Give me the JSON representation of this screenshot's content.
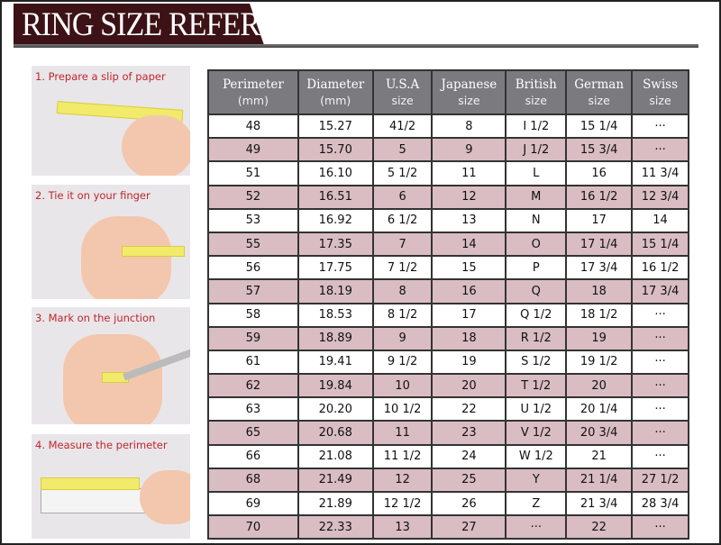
{
  "title": "RING SIZE REFERENCE",
  "colors": {
    "title_bar": "#3c1216",
    "header": "#7b7a7e",
    "stripe": "#d9bdc2",
    "caption": "#c0262b"
  },
  "steps": [
    {
      "label": "1. Prepare a slip of paper"
    },
    {
      "label": "2. Tie it on your finger"
    },
    {
      "label": "3. Mark on the junction"
    },
    {
      "label": "4. Measure the perimeter"
    }
  ],
  "table": {
    "headers": [
      {
        "name": "Perimeter",
        "sub": "(mm)"
      },
      {
        "name": "Diameter",
        "sub": "(mm)"
      },
      {
        "name": "U.S.A",
        "sub": "size"
      },
      {
        "name": "Japanese",
        "sub": "size"
      },
      {
        "name": "British",
        "sub": "size"
      },
      {
        "name": "German",
        "sub": "size"
      },
      {
        "name": "Swiss",
        "sub": "size"
      }
    ],
    "rows": [
      [
        "48",
        "15.27",
        "41/2",
        "8",
        "I 1/2",
        "15 1/4",
        "···"
      ],
      [
        "49",
        "15.70",
        "5",
        "9",
        "J 1/2",
        "15 3/4",
        "···"
      ],
      [
        "51",
        "16.10",
        "5 1/2",
        "11",
        "L",
        "16",
        "11 3/4"
      ],
      [
        "52",
        "16.51",
        "6",
        "12",
        "M",
        "16 1/2",
        "12 3/4"
      ],
      [
        "53",
        "16.92",
        "6 1/2",
        "13",
        "N",
        "17",
        "14"
      ],
      [
        "55",
        "17.35",
        "7",
        "14",
        "O",
        "17 1/4",
        "15 1/4"
      ],
      [
        "56",
        "17.75",
        "7 1/2",
        "15",
        "P",
        "17 3/4",
        "16 1/2"
      ],
      [
        "57",
        "18.19",
        "8",
        "16",
        "Q",
        "18",
        "17 3/4"
      ],
      [
        "58",
        "18.53",
        "8 1/2",
        "17",
        "Q  1/2",
        "18 1/2",
        "···"
      ],
      [
        "59",
        "18.89",
        "9",
        "18",
        "R 1/2",
        "19",
        "···"
      ],
      [
        "61",
        "19.41",
        "9 1/2",
        "19",
        "S 1/2",
        "19 1/2",
        "···"
      ],
      [
        "62",
        "19.84",
        "10",
        "20",
        "T 1/2",
        "20",
        "···"
      ],
      [
        "63",
        "20.20",
        "10 1/2",
        "22",
        "U 1/2",
        "20 1/4",
        "···"
      ],
      [
        "65",
        "20.68",
        "11",
        "23",
        "V 1/2",
        "20 3/4",
        "···"
      ],
      [
        "66",
        "21.08",
        "11 1/2",
        "24",
        "W 1/2",
        "21",
        "···"
      ],
      [
        "68",
        "21.49",
        "12",
        "25",
        "Y",
        "21 1/4",
        "27 1/2"
      ],
      [
        "69",
        "21.89",
        "12 1/2",
        "26",
        "Z",
        "21 3/4",
        "28 3/4"
      ],
      [
        "70",
        "22.33",
        "13",
        "27",
        "···",
        "22",
        "···"
      ]
    ]
  }
}
